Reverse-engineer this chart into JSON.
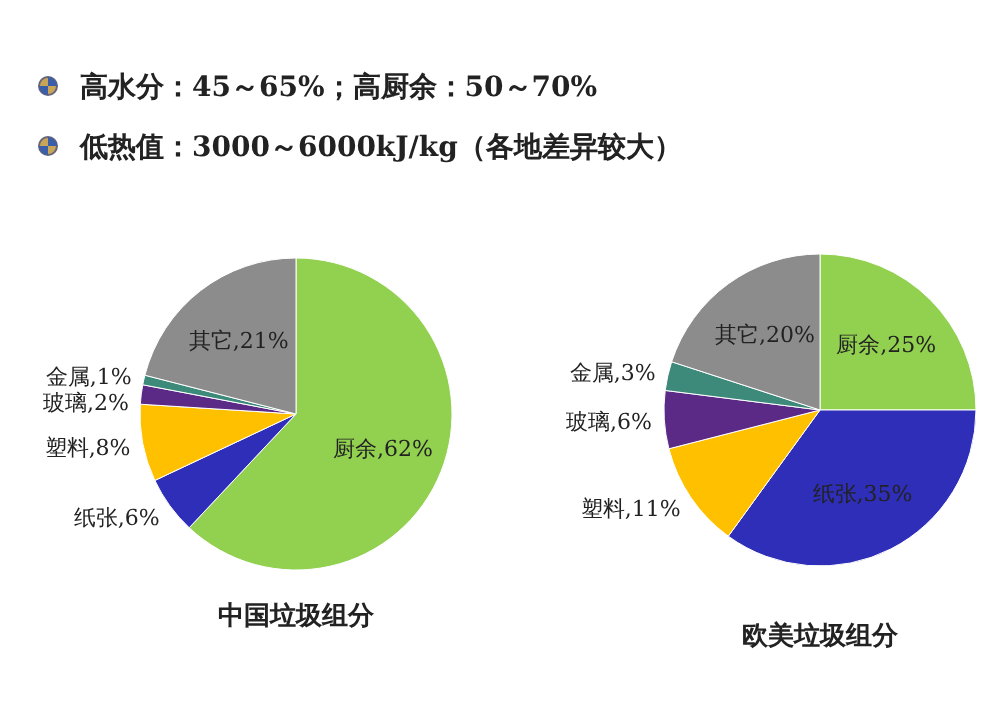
{
  "chart_data": [
    {
      "type": "pie",
      "title": "中国垃圾组分",
      "annotations": [
        "高水分：45～65%；高厨余：50～70%",
        "低热值：3000～6000kJ/kg（各地差异较大）"
      ],
      "categories": [
        "厨余",
        "纸张",
        "塑料",
        "玻璃",
        "金属",
        "其它"
      ],
      "values": [
        62,
        6,
        8,
        2,
        1,
        21
      ],
      "value_labels": [
        "62%",
        "6%",
        "8%",
        "2%",
        "1%",
        "21%"
      ],
      "colors": [
        "#92d050",
        "#2e2eb8",
        "#ffc000",
        "#5b2a86",
        "#3d8a7a",
        "#8c8c8c"
      ]
    },
    {
      "type": "pie",
      "title": "欧美垃圾组分",
      "categories": [
        "厨余",
        "纸张",
        "塑料",
        "玻璃",
        "金属",
        "其它"
      ],
      "values": [
        25,
        35,
        11,
        6,
        3,
        20
      ],
      "value_labels": [
        "25%",
        "35%",
        "11%",
        "6%",
        "3%",
        "20%"
      ],
      "colors": [
        "#92d050",
        "#2e2eb8",
        "#ffc000",
        "#5b2a86",
        "#3d8a7a",
        "#8c8c8c"
      ]
    }
  ]
}
